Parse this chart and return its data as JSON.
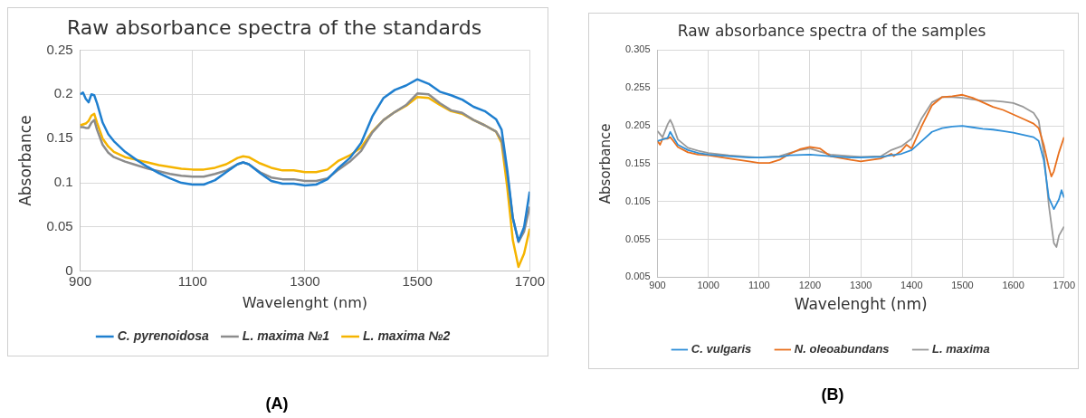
{
  "chart_data": [
    {
      "type": "line",
      "title": "Raw absorbance spectra of the standards",
      "xlabel": "Wavelenght (nm)",
      "ylabel": "Absorbance",
      "annotations": [
        "(A)"
      ],
      "xlim": [
        900,
        1700
      ],
      "xticks": [
        900,
        1100,
        1300,
        1500,
        1700
      ],
      "ylim": [
        0,
        0.25
      ],
      "yticks": [
        0,
        0.05,
        0.1,
        0.15,
        0.2,
        0.25
      ],
      "grid": true,
      "legend": "bottom",
      "marker": "none",
      "x": [
        900,
        905,
        910,
        915,
        920,
        925,
        930,
        940,
        950,
        960,
        980,
        1000,
        1020,
        1040,
        1060,
        1080,
        1100,
        1120,
        1140,
        1160,
        1180,
        1190,
        1200,
        1220,
        1240,
        1260,
        1280,
        1300,
        1320,
        1340,
        1360,
        1380,
        1400,
        1420,
        1440,
        1460,
        1480,
        1500,
        1520,
        1540,
        1560,
        1580,
        1600,
        1620,
        1640,
        1650,
        1660,
        1670,
        1680,
        1690,
        1700
      ],
      "series": [
        {
          "name": "C. pyrenoidosa",
          "color": "#1f7fcf",
          "values": [
            0.2,
            0.202,
            0.195,
            0.191,
            0.2,
            0.199,
            0.19,
            0.168,
            0.155,
            0.147,
            0.135,
            0.126,
            0.118,
            0.111,
            0.105,
            0.1,
            0.098,
            0.098,
            0.103,
            0.112,
            0.121,
            0.123,
            0.121,
            0.111,
            0.102,
            0.099,
            0.099,
            0.097,
            0.098,
            0.104,
            0.117,
            0.128,
            0.145,
            0.175,
            0.196,
            0.205,
            0.21,
            0.217,
            0.212,
            0.203,
            0.199,
            0.194,
            0.186,
            0.181,
            0.172,
            0.16,
            0.115,
            0.06,
            0.034,
            0.05,
            0.09
          ]
        },
        {
          "name": "L. maxima №1",
          "color": "#8c8c8c",
          "values": [
            0.163,
            0.163,
            0.162,
            0.162,
            0.168,
            0.171,
            0.16,
            0.143,
            0.134,
            0.129,
            0.124,
            0.12,
            0.116,
            0.113,
            0.11,
            0.108,
            0.107,
            0.107,
            0.11,
            0.114,
            0.121,
            0.123,
            0.121,
            0.112,
            0.106,
            0.104,
            0.104,
            0.102,
            0.102,
            0.105,
            0.115,
            0.124,
            0.136,
            0.157,
            0.171,
            0.18,
            0.188,
            0.201,
            0.2,
            0.19,
            0.182,
            0.179,
            0.171,
            0.165,
            0.158,
            0.148,
            0.11,
            0.06,
            0.033,
            0.045,
            0.073
          ]
        },
        {
          "name": "L. maxima №2",
          "color": "#f5b400",
          "values": [
            0.165,
            0.166,
            0.167,
            0.17,
            0.176,
            0.178,
            0.168,
            0.15,
            0.141,
            0.135,
            0.129,
            0.126,
            0.123,
            0.12,
            0.118,
            0.116,
            0.115,
            0.115,
            0.117,
            0.121,
            0.128,
            0.13,
            0.129,
            0.122,
            0.117,
            0.114,
            0.114,
            0.112,
            0.112,
            0.115,
            0.125,
            0.131,
            0.14,
            0.158,
            0.171,
            0.18,
            0.187,
            0.197,
            0.196,
            0.188,
            0.181,
            0.178,
            0.171,
            0.165,
            0.158,
            0.145,
            0.095,
            0.035,
            0.005,
            0.02,
            0.048
          ]
        }
      ]
    },
    {
      "type": "line",
      "title": "Raw absorbance spectra of the samples",
      "xlabel": "Wavelenght (nm)",
      "ylabel": "Absorbance",
      "annotations": [
        "(B)"
      ],
      "xlim": [
        900,
        1700
      ],
      "xticks": [
        900,
        1000,
        1100,
        1200,
        1300,
        1400,
        1500,
        1600,
        1700
      ],
      "ylim": [
        0.005,
        0.305
      ],
      "yticks": [
        0.005,
        0.055,
        0.105,
        0.155,
        0.205,
        0.255,
        0.305
      ],
      "grid": true,
      "legend": "bottom",
      "marker": "none",
      "series": [
        {
          "name": "C. vulgaris",
          "color": "#2f8fd8",
          "x": [
            900,
            910,
            920,
            925,
            930,
            940,
            960,
            980,
            1000,
            1040,
            1080,
            1100,
            1140,
            1160,
            1200,
            1240,
            1280,
            1300,
            1340,
            1360,
            1380,
            1400,
            1420,
            1440,
            1460,
            1480,
            1500,
            1520,
            1540,
            1560,
            1580,
            1600,
            1620,
            1640,
            1650,
            1660,
            1670,
            1680,
            1690,
            1695,
            1700
          ],
          "values": [
            0.185,
            0.187,
            0.189,
            0.197,
            0.191,
            0.18,
            0.173,
            0.169,
            0.167,
            0.165,
            0.163,
            0.163,
            0.164,
            0.166,
            0.167,
            0.165,
            0.163,
            0.163,
            0.164,
            0.166,
            0.168,
            0.173,
            0.185,
            0.197,
            0.202,
            0.204,
            0.205,
            0.203,
            0.201,
            0.2,
            0.198,
            0.196,
            0.193,
            0.19,
            0.185,
            0.16,
            0.11,
            0.095,
            0.108,
            0.12,
            0.11
          ]
        },
        {
          "name": "N. oleoabundans",
          "color": "#e8701e",
          "x": [
            900,
            905,
            910,
            920,
            925,
            930,
            940,
            960,
            980,
            1000,
            1040,
            1080,
            1100,
            1120,
            1140,
            1160,
            1180,
            1200,
            1220,
            1240,
            1280,
            1300,
            1340,
            1360,
            1365,
            1380,
            1390,
            1400,
            1420,
            1440,
            1460,
            1480,
            1500,
            1520,
            1540,
            1560,
            1580,
            1600,
            1620,
            1640,
            1650,
            1660,
            1670,
            1675,
            1680,
            1690,
            1700
          ],
          "values": [
            0.185,
            0.18,
            0.188,
            0.188,
            0.19,
            0.186,
            0.177,
            0.17,
            0.167,
            0.166,
            0.162,
            0.158,
            0.156,
            0.156,
            0.16,
            0.168,
            0.174,
            0.177,
            0.175,
            0.165,
            0.16,
            0.158,
            0.162,
            0.168,
            0.165,
            0.172,
            0.18,
            0.175,
            0.205,
            0.232,
            0.243,
            0.244,
            0.246,
            0.242,
            0.236,
            0.23,
            0.226,
            0.22,
            0.214,
            0.208,
            0.202,
            0.18,
            0.15,
            0.138,
            0.145,
            0.17,
            0.19
          ]
        },
        {
          "name": "L. maxima",
          "color": "#999999",
          "x": [
            900,
            910,
            920,
            925,
            930,
            940,
            960,
            980,
            1000,
            1040,
            1080,
            1100,
            1140,
            1160,
            1180,
            1200,
            1220,
            1240,
            1280,
            1300,
            1340,
            1360,
            1380,
            1400,
            1420,
            1440,
            1460,
            1480,
            1500,
            1520,
            1540,
            1560,
            1580,
            1600,
            1620,
            1640,
            1650,
            1660,
            1670,
            1680,
            1685,
            1690,
            1700
          ],
          "values": [
            0.198,
            0.19,
            0.207,
            0.213,
            0.206,
            0.187,
            0.176,
            0.172,
            0.169,
            0.166,
            0.164,
            0.163,
            0.165,
            0.169,
            0.173,
            0.175,
            0.171,
            0.167,
            0.165,
            0.164,
            0.165,
            0.173,
            0.178,
            0.188,
            0.215,
            0.236,
            0.243,
            0.243,
            0.242,
            0.24,
            0.238,
            0.238,
            0.237,
            0.235,
            0.23,
            0.222,
            0.212,
            0.17,
            0.1,
            0.05,
            0.045,
            0.06,
            0.072
          ]
        }
      ]
    }
  ]
}
